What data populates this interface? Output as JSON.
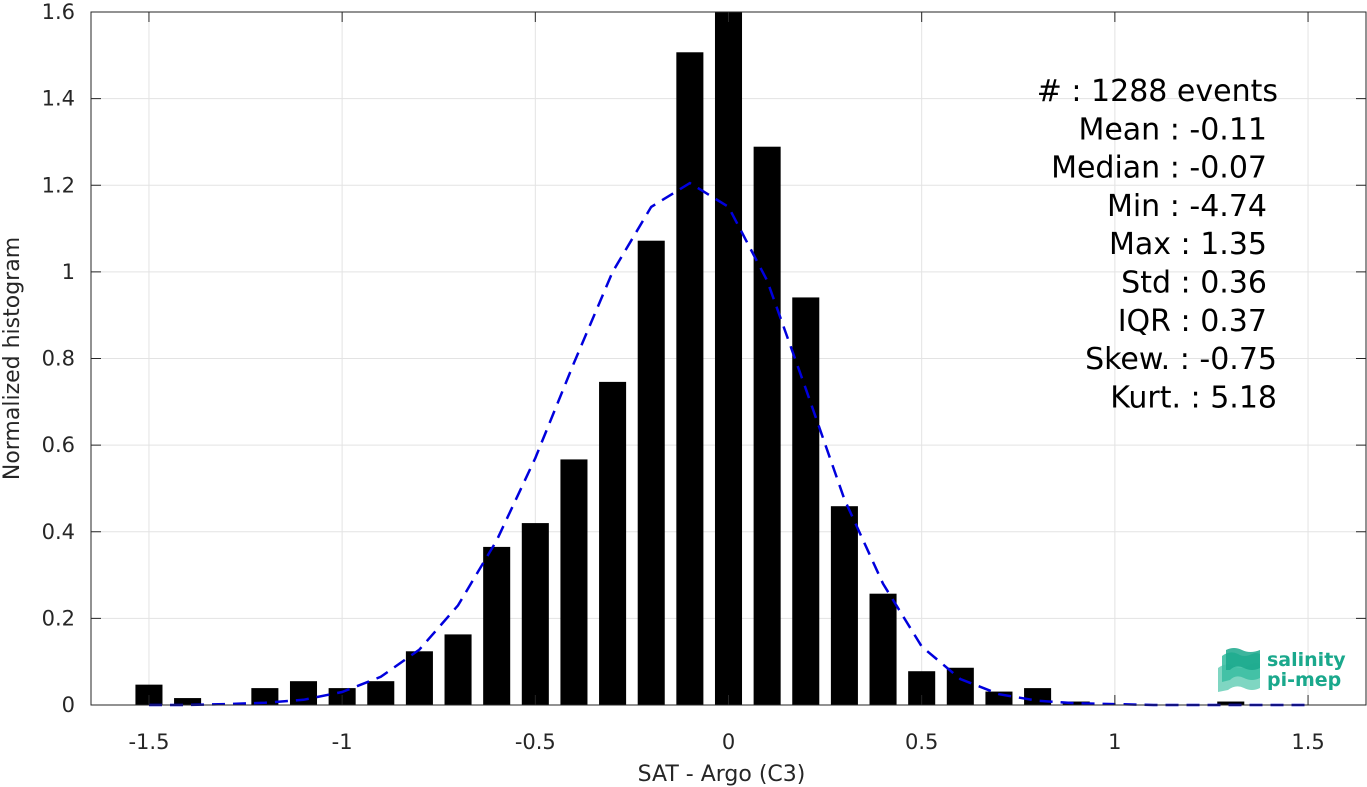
{
  "chart_data": {
    "type": "bar",
    "xlabel": "SAT - Argo (C3)",
    "ylabel": "Normalized histogram",
    "xlim": [
      -1.65,
      1.65
    ],
    "ylim": [
      0,
      1.6
    ],
    "xticks": [
      -1.5,
      -1,
      -0.5,
      0,
      0.5,
      1,
      1.5
    ],
    "xtick_labels": [
      "-1.5",
      "-1",
      "-0.5",
      "0",
      "0.5",
      "1",
      "1.5"
    ],
    "yticks": [
      0,
      0.2,
      0.4,
      0.6,
      0.8,
      1.0,
      1.2,
      1.4,
      1.6
    ],
    "ytick_labels": [
      "0",
      "0.2",
      "0.4",
      "0.6",
      "0.8",
      "1",
      "1.2",
      "1.4",
      "1.6"
    ],
    "grid": true,
    "bar_width": 0.07,
    "bars": {
      "x": [
        -1.5,
        -1.4,
        -1.3,
        -1.2,
        -1.1,
        -1.0,
        -0.9,
        -0.8,
        -0.7,
        -0.6,
        -0.5,
        -0.4,
        -0.3,
        -0.2,
        -0.1,
        0.0,
        0.1,
        0.2,
        0.3,
        0.4,
        0.5,
        0.6,
        0.7,
        0.8,
        0.9,
        1.0,
        1.1,
        1.2,
        1.3,
        1.4,
        1.5
      ],
      "values": [
        0.047,
        0.016,
        0.0,
        0.039,
        0.055,
        0.039,
        0.055,
        0.124,
        0.163,
        0.365,
        0.42,
        0.567,
        0.746,
        1.072,
        1.507,
        1.6,
        1.289,
        0.941,
        0.459,
        0.257,
        0.078,
        0.086,
        0.031,
        0.039,
        0.008,
        0.0,
        0.0,
        0.0,
        0.008,
        0.0,
        0.0
      ],
      "color": "#000000"
    },
    "fit_curve": {
      "style": "dashed",
      "color": "#0000dd",
      "x": [
        -1.5,
        -1.4,
        -1.3,
        -1.2,
        -1.1,
        -1.0,
        -0.9,
        -0.8,
        -0.7,
        -0.6,
        -0.5,
        -0.4,
        -0.3,
        -0.2,
        -0.1,
        0.0,
        0.1,
        0.2,
        0.3,
        0.4,
        0.5,
        0.6,
        0.7,
        0.8,
        0.9,
        1.0,
        1.1,
        1.2,
        1.3,
        1.4,
        1.5
      ],
      "y": [
        0.0,
        0.0,
        0.002,
        0.005,
        0.012,
        0.03,
        0.065,
        0.128,
        0.23,
        0.38,
        0.57,
        0.79,
        1.0,
        1.15,
        1.205,
        1.15,
        0.98,
        0.73,
        0.475,
        0.28,
        0.135,
        0.06,
        0.025,
        0.01,
        0.004,
        0.002,
        0.0,
        0.0,
        0.0,
        0.0,
        0.0
      ]
    },
    "annotations": [
      "#  : 1288 events",
      "Mean : -0.11",
      "Median : -0.07",
      "Min : -4.74",
      "Max : 1.35",
      "Std : 0.36",
      "IQR : 0.37",
      "Skew. : -0.75",
      "Kurt. : 5.18"
    ],
    "annotation_placement": "top-right"
  },
  "logo": {
    "line1": "salinity",
    "line2": "pi-mep",
    "color": "#1aa88c"
  }
}
